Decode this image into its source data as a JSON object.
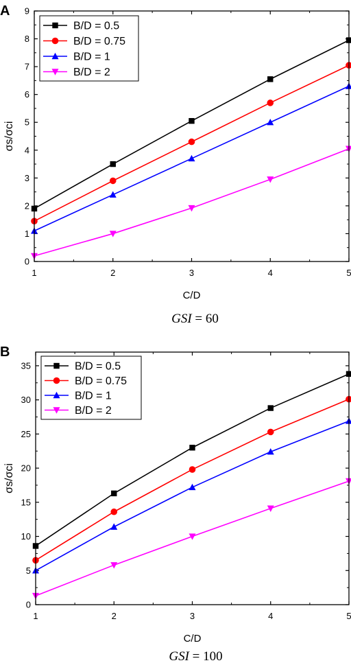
{
  "chart_data": [
    {
      "type": "line",
      "panel_label": "A",
      "caption_italic": "GSI",
      "caption_rest": " = 60",
      "xlabel": "C/D",
      "ylabel": "σs/σci",
      "x": [
        1,
        2,
        3,
        4,
        5
      ],
      "xlim": [
        1,
        5
      ],
      "ylim": [
        0,
        9
      ],
      "xticks": [
        "1",
        "2",
        "3",
        "4",
        "5"
      ],
      "yticks": [
        "0",
        "1",
        "2",
        "3",
        "4",
        "5",
        "6",
        "7",
        "8",
        "9"
      ],
      "legend_position": "top-left",
      "series": [
        {
          "name": "B/D = 0.5",
          "color": "#000000",
          "marker": "square",
          "values": [
            1.9,
            3.5,
            5.05,
            6.55,
            7.95
          ]
        },
        {
          "name": "B/D = 0.75",
          "color": "#ff0000",
          "marker": "circle",
          "values": [
            1.45,
            2.9,
            4.3,
            5.7,
            7.05
          ]
        },
        {
          "name": "B/D = 1",
          "color": "#0000ff",
          "marker": "triangle-up",
          "values": [
            1.1,
            2.4,
            3.7,
            5.0,
            6.3
          ]
        },
        {
          "name": "B/D = 2",
          "color": "#ff00ff",
          "marker": "triangle-down",
          "values": [
            0.2,
            1.0,
            1.92,
            2.95,
            4.05
          ]
        }
      ]
    },
    {
      "type": "line",
      "panel_label": "B",
      "caption_italic": "GSI",
      "caption_rest": " = 100",
      "xlabel": "C/D",
      "ylabel": "σs/σci",
      "x": [
        1,
        2,
        3,
        4,
        5
      ],
      "xlim": [
        1,
        5
      ],
      "ylim": [
        0,
        37
      ],
      "xticks": [
        "1",
        "2",
        "3",
        "4",
        "5"
      ],
      "yticks": [
        "0",
        "5",
        "10",
        "15",
        "20",
        "25",
        "30",
        "35"
      ],
      "legend_position": "top-left",
      "series": [
        {
          "name": "B/D = 0.5",
          "color": "#000000",
          "marker": "square",
          "values": [
            8.6,
            16.3,
            23.0,
            28.8,
            33.8
          ]
        },
        {
          "name": "B/D = 0.75",
          "color": "#ff0000",
          "marker": "circle",
          "values": [
            6.5,
            13.6,
            19.8,
            25.3,
            30.1
          ]
        },
        {
          "name": "B/D = 1",
          "color": "#0000ff",
          "marker": "triangle-up",
          "values": [
            5.0,
            11.4,
            17.2,
            22.4,
            26.9
          ]
        },
        {
          "name": "B/D = 2",
          "color": "#ff00ff",
          "marker": "triangle-down",
          "values": [
            1.3,
            5.8,
            10.0,
            14.1,
            18.1
          ]
        }
      ]
    }
  ]
}
